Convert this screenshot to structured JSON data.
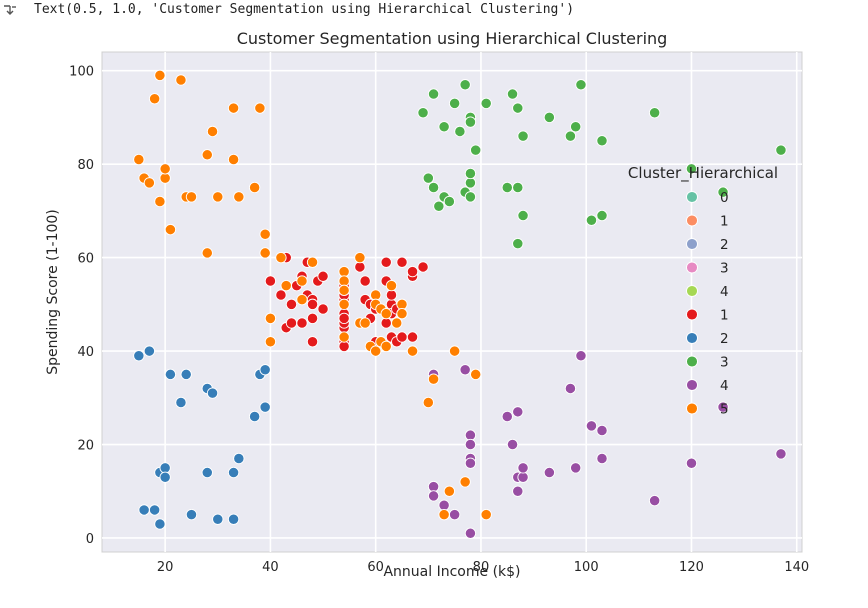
{
  "output": {
    "text": "Text(0.5, 1.0, 'Customer Segmentation using Hierarchical Clustering')"
  },
  "chart_data": {
    "type": "scatter",
    "title": "Customer Segmentation using Hierarchical Clustering",
    "xlabel": "Annual Income (k$)",
    "ylabel": "Spending Score (1-100)",
    "xlim": [
      8,
      141
    ],
    "ylim": [
      -3,
      104
    ],
    "xticks": [
      20,
      40,
      60,
      80,
      100,
      120,
      140
    ],
    "yticks": [
      0,
      20,
      40,
      60,
      80,
      100
    ],
    "grid": true,
    "legend": {
      "title": "Cluster_Hierarchical",
      "placement": "right",
      "entries": [
        {
          "label": "0",
          "color": "#66c2a5"
        },
        {
          "label": "1",
          "color": "#fc8d62"
        },
        {
          "label": "2",
          "color": "#8da0cb"
        },
        {
          "label": "3",
          "color": "#e78ac3"
        },
        {
          "label": "4",
          "color": "#a6d854"
        },
        {
          "label": "1",
          "color": "#e41a1c"
        },
        {
          "label": "2",
          "color": "#377eb8"
        },
        {
          "label": "3",
          "color": "#4daf4a"
        },
        {
          "label": "4",
          "color": "#984ea3"
        },
        {
          "label": "5",
          "color": "#ff7f00"
        }
      ]
    },
    "series": [
      {
        "name": "1",
        "color": "#e41a1c",
        "points": [
          [
            38,
            35
          ],
          [
            39,
            36
          ],
          [
            40,
            55
          ],
          [
            40,
            47
          ],
          [
            42,
            52
          ],
          [
            43,
            60
          ],
          [
            43,
            45
          ],
          [
            44,
            50
          ],
          [
            44,
            46
          ],
          [
            45,
            54
          ],
          [
            46,
            46
          ],
          [
            46,
            56
          ],
          [
            47,
            59
          ],
          [
            47,
            52
          ],
          [
            48,
            51
          ],
          [
            48,
            47
          ],
          [
            48,
            50
          ],
          [
            48,
            42
          ],
          [
            49,
            55
          ],
          [
            50,
            56
          ],
          [
            50,
            49
          ],
          [
            54,
            51
          ],
          [
            54,
            48
          ],
          [
            54,
            52
          ],
          [
            54,
            45
          ],
          [
            54,
            42
          ],
          [
            54,
            46
          ],
          [
            54,
            41
          ],
          [
            54,
            54
          ],
          [
            54,
            47
          ],
          [
            57,
            58
          ],
          [
            58,
            55
          ],
          [
            58,
            51
          ],
          [
            59,
            47
          ],
          [
            59,
            50
          ],
          [
            60,
            42
          ],
          [
            60,
            49
          ],
          [
            61,
            42
          ],
          [
            62,
            59
          ],
          [
            62,
            55
          ],
          [
            62,
            46
          ],
          [
            63,
            50
          ],
          [
            63,
            52
          ],
          [
            63,
            48
          ],
          [
            63,
            43
          ],
          [
            64,
            42
          ],
          [
            64,
            49
          ],
          [
            65,
            48
          ],
          [
            65,
            59
          ],
          [
            65,
            43
          ],
          [
            67,
            56
          ],
          [
            67,
            57
          ],
          [
            67,
            43
          ],
          [
            69,
            58
          ]
        ]
      },
      {
        "name": "2",
        "color": "#377eb8",
        "points": [
          [
            15,
            39
          ],
          [
            16,
            6
          ],
          [
            17,
            40
          ],
          [
            18,
            6
          ],
          [
            19,
            14
          ],
          [
            19,
            3
          ],
          [
            20,
            15
          ],
          [
            20,
            13
          ],
          [
            21,
            35
          ],
          [
            23,
            29
          ],
          [
            24,
            35
          ],
          [
            25,
            5
          ],
          [
            28,
            14
          ],
          [
            28,
            32
          ],
          [
            29,
            31
          ],
          [
            30,
            4
          ],
          [
            33,
            4
          ],
          [
            33,
            14
          ],
          [
            34,
            17
          ],
          [
            37,
            26
          ],
          [
            38,
            35
          ],
          [
            39,
            36
          ],
          [
            39,
            28
          ]
        ]
      },
      {
        "name": "3",
        "color": "#4daf4a",
        "points": [
          [
            69,
            91
          ],
          [
            70,
            77
          ],
          [
            71,
            95
          ],
          [
            71,
            75
          ],
          [
            72,
            71
          ],
          [
            73,
            73
          ],
          [
            73,
            88
          ],
          [
            74,
            72
          ],
          [
            75,
            93
          ],
          [
            76,
            87
          ],
          [
            77,
            97
          ],
          [
            77,
            74
          ],
          [
            78,
            90
          ],
          [
            78,
            76
          ],
          [
            78,
            89
          ],
          [
            78,
            78
          ],
          [
            78,
            73
          ],
          [
            79,
            83
          ],
          [
            81,
            93
          ],
          [
            85,
            75
          ],
          [
            86,
            95
          ],
          [
            87,
            63
          ],
          [
            87,
            75
          ],
          [
            87,
            92
          ],
          [
            88,
            86
          ],
          [
            88,
            69
          ],
          [
            93,
            90
          ],
          [
            97,
            86
          ],
          [
            98,
            88
          ],
          [
            99,
            97
          ],
          [
            101,
            68
          ],
          [
            103,
            85
          ],
          [
            103,
            69
          ],
          [
            113,
            91
          ],
          [
            120,
            79
          ],
          [
            126,
            74
          ],
          [
            137,
            83
          ]
        ]
      },
      {
        "name": "4",
        "color": "#984ea3",
        "points": [
          [
            71,
            35
          ],
          [
            71,
            11
          ],
          [
            71,
            9
          ],
          [
            73,
            5
          ],
          [
            73,
            7
          ],
          [
            75,
            5
          ],
          [
            77,
            36
          ],
          [
            78,
            22
          ],
          [
            78,
            20
          ],
          [
            78,
            17
          ],
          [
            78,
            16
          ],
          [
            78,
            1
          ],
          [
            79,
            35
          ],
          [
            85,
            26
          ],
          [
            86,
            20
          ],
          [
            87,
            27
          ],
          [
            87,
            13
          ],
          [
            87,
            10
          ],
          [
            88,
            13
          ],
          [
            88,
            15
          ],
          [
            93,
            14
          ],
          [
            97,
            32
          ],
          [
            98,
            15
          ],
          [
            99,
            39
          ],
          [
            101,
            24
          ],
          [
            103,
            23
          ],
          [
            103,
            17
          ],
          [
            113,
            8
          ],
          [
            120,
            16
          ],
          [
            126,
            28
          ],
          [
            137,
            18
          ]
        ]
      },
      {
        "name": "5",
        "color": "#ff7f00",
        "points": [
          [
            15,
            81
          ],
          [
            16,
            77
          ],
          [
            17,
            76
          ],
          [
            18,
            94
          ],
          [
            19,
            99
          ],
          [
            19,
            72
          ],
          [
            20,
            77
          ],
          [
            20,
            79
          ],
          [
            21,
            66
          ],
          [
            23,
            98
          ],
          [
            24,
            73
          ],
          [
            25,
            73
          ],
          [
            28,
            82
          ],
          [
            28,
            61
          ],
          [
            29,
            87
          ],
          [
            30,
            73
          ],
          [
            33,
            92
          ],
          [
            33,
            81
          ],
          [
            34,
            73
          ],
          [
            37,
            75
          ],
          [
            38,
            92
          ],
          [
            39,
            65
          ],
          [
            39,
            61
          ],
          [
            40,
            47
          ],
          [
            40,
            42
          ],
          [
            42,
            60
          ],
          [
            43,
            54
          ],
          [
            46,
            51
          ],
          [
            46,
            55
          ],
          [
            48,
            59
          ],
          [
            54,
            57
          ],
          [
            54,
            55
          ],
          [
            54,
            53
          ],
          [
            54,
            50
          ],
          [
            54,
            43
          ],
          [
            57,
            46
          ],
          [
            57,
            60
          ],
          [
            58,
            46
          ],
          [
            59,
            41
          ],
          [
            60,
            40
          ],
          [
            60,
            52
          ],
          [
            60,
            50
          ],
          [
            61,
            49
          ],
          [
            61,
            42
          ],
          [
            62,
            48
          ],
          [
            62,
            41
          ],
          [
            63,
            54
          ],
          [
            64,
            46
          ],
          [
            65,
            50
          ],
          [
            65,
            48
          ],
          [
            67,
            40
          ],
          [
            70,
            29
          ],
          [
            71,
            34
          ],
          [
            74,
            10
          ],
          [
            75,
            40
          ],
          [
            77,
            12
          ],
          [
            79,
            35
          ],
          [
            81,
            5
          ],
          [
            73,
            5
          ]
        ]
      }
    ]
  }
}
